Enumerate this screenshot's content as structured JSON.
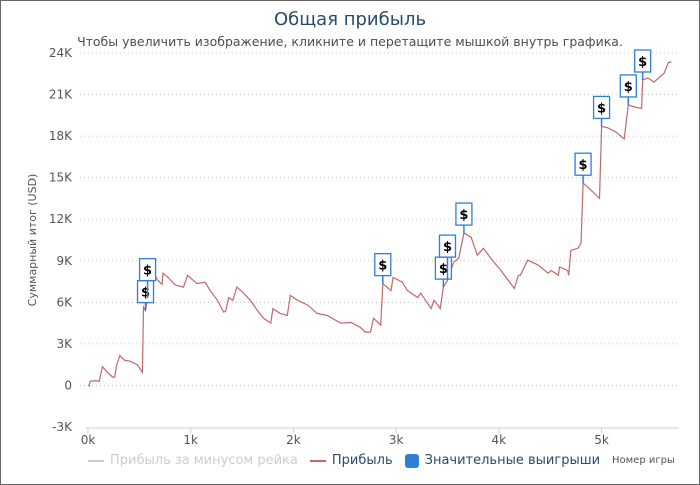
{
  "chart_data": {
    "type": "line",
    "title": "Общая прибыль",
    "subtitle": "Чтобы увеличить изображение, кликните и перетащите мышкой внутрь графика.",
    "xlabel": "Номер игры",
    "ylabel": "Суммарный итог (USD)",
    "xlim": [
      0,
      5750
    ],
    "ylim": [
      -3000,
      24000
    ],
    "x_ticks": [
      {
        "v": 0,
        "label": "0k"
      },
      {
        "v": 1000,
        "label": "1k"
      },
      {
        "v": 2000,
        "label": "2k"
      },
      {
        "v": 3000,
        "label": "3k"
      },
      {
        "v": 4000,
        "label": "4k"
      },
      {
        "v": 5000,
        "label": "5k"
      }
    ],
    "y_ticks": [
      {
        "v": -3000,
        "label": "-3K"
      },
      {
        "v": 0,
        "label": "0"
      },
      {
        "v": 3000,
        "label": "3K"
      },
      {
        "v": 6000,
        "label": "6K"
      },
      {
        "v": 9000,
        "label": "9K"
      },
      {
        "v": 12000,
        "label": "12K"
      },
      {
        "v": 15000,
        "label": "15K"
      },
      {
        "v": 18000,
        "label": "18K"
      },
      {
        "v": 21000,
        "label": "21K"
      },
      {
        "v": 24000,
        "label": "24K"
      }
    ],
    "grid": true,
    "legend_position": "bottom",
    "series": [
      {
        "name": "Прибыль за минусом рейка",
        "color": "#cccccc",
        "hidden": true,
        "points": []
      },
      {
        "name": "Прибыль",
        "color": "#c0696b",
        "points": [
          [
            0,
            0
          ],
          [
            10,
            -50
          ],
          [
            20,
            300
          ],
          [
            70,
            350
          ],
          [
            110,
            300
          ],
          [
            140,
            1350
          ],
          [
            190,
            950
          ],
          [
            240,
            600
          ],
          [
            260,
            600
          ],
          [
            280,
            1500
          ],
          [
            310,
            2150
          ],
          [
            360,
            1800
          ],
          [
            410,
            1750
          ],
          [
            480,
            1500
          ],
          [
            530,
            950
          ],
          [
            540,
            5650
          ],
          [
            560,
            5400
          ],
          [
            580,
            6300
          ],
          [
            620,
            7800
          ],
          [
            650,
            7950
          ],
          [
            680,
            7600
          ],
          [
            720,
            7300
          ],
          [
            730,
            8100
          ],
          [
            780,
            7800
          ],
          [
            850,
            7250
          ],
          [
            930,
            7100
          ],
          [
            970,
            7950
          ],
          [
            1000,
            7750
          ],
          [
            1060,
            7350
          ],
          [
            1140,
            7450
          ],
          [
            1190,
            6850
          ],
          [
            1260,
            6150
          ],
          [
            1320,
            5300
          ],
          [
            1340,
            5350
          ],
          [
            1370,
            6350
          ],
          [
            1410,
            6150
          ],
          [
            1450,
            7100
          ],
          [
            1510,
            6700
          ],
          [
            1580,
            6150
          ],
          [
            1650,
            5400
          ],
          [
            1710,
            4850
          ],
          [
            1780,
            4500
          ],
          [
            1800,
            5550
          ],
          [
            1870,
            5200
          ],
          [
            1940,
            5050
          ],
          [
            1970,
            6500
          ],
          [
            2040,
            6150
          ],
          [
            2140,
            5800
          ],
          [
            2230,
            5200
          ],
          [
            2330,
            5050
          ],
          [
            2460,
            4500
          ],
          [
            2560,
            4550
          ],
          [
            2650,
            4200
          ],
          [
            2700,
            3850
          ],
          [
            2750,
            3850
          ],
          [
            2780,
            4850
          ],
          [
            2850,
            4350
          ],
          [
            2870,
            7350
          ],
          [
            2950,
            6850
          ],
          [
            2970,
            7800
          ],
          [
            3060,
            7450
          ],
          [
            3110,
            6850
          ],
          [
            3210,
            6350
          ],
          [
            3240,
            6650
          ],
          [
            3340,
            5550
          ],
          [
            3370,
            6150
          ],
          [
            3430,
            5550
          ],
          [
            3460,
            7100
          ],
          [
            3500,
            7600
          ],
          [
            3560,
            8900
          ],
          [
            3610,
            9200
          ],
          [
            3660,
            11000
          ],
          [
            3730,
            10700
          ],
          [
            3790,
            9400
          ],
          [
            3850,
            9900
          ],
          [
            3920,
            9200
          ],
          [
            4020,
            8300
          ],
          [
            4150,
            7000
          ],
          [
            4190,
            7950
          ],
          [
            4210,
            7950
          ],
          [
            4280,
            9050
          ],
          [
            4380,
            8700
          ],
          [
            4480,
            8100
          ],
          [
            4510,
            8300
          ],
          [
            4580,
            7950
          ],
          [
            4590,
            8550
          ],
          [
            4670,
            8300
          ],
          [
            4680,
            7950
          ],
          [
            4700,
            9750
          ],
          [
            4770,
            9900
          ],
          [
            4800,
            10250
          ],
          [
            4820,
            14600
          ],
          [
            4870,
            14300
          ],
          [
            4980,
            13500
          ],
          [
            5000,
            18700
          ],
          [
            5060,
            18600
          ],
          [
            5140,
            18300
          ],
          [
            5220,
            17800
          ],
          [
            5260,
            20250
          ],
          [
            5320,
            20100
          ],
          [
            5390,
            20000
          ],
          [
            5400,
            22050
          ],
          [
            5450,
            22200
          ],
          [
            5510,
            21900
          ],
          [
            5610,
            22550
          ],
          [
            5650,
            23300
          ],
          [
            5680,
            23350
          ]
        ]
      },
      {
        "name": "Значительные выигрыши",
        "color": "#2f7ed8",
        "type": "flags",
        "flag_text": "$",
        "points": [
          [
            560,
            5400
          ],
          [
            580,
            6300
          ],
          [
            2870,
            7350
          ],
          [
            3460,
            7100
          ],
          [
            3500,
            7600
          ],
          [
            3660,
            11000
          ],
          [
            4820,
            14600
          ],
          [
            5000,
            18700
          ],
          [
            5260,
            20250
          ],
          [
            5400,
            22050
          ]
        ]
      }
    ]
  }
}
